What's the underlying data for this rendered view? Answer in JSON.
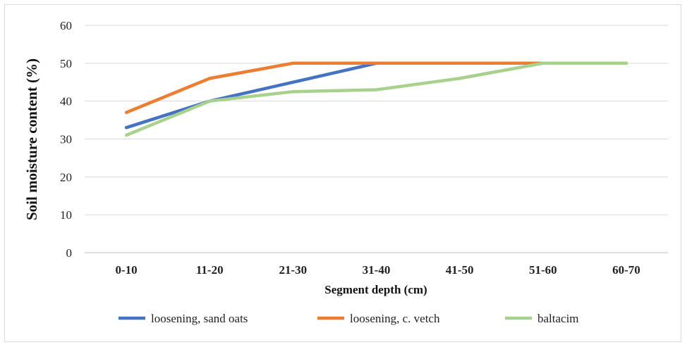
{
  "chart_data": {
    "type": "line",
    "title": "",
    "xlabel": "Segment depth (cm)",
    "ylabel": "Soil moisture content (%)",
    "categories": [
      "0-10",
      "11-20",
      "21-30",
      "31-40",
      "41-50",
      "51-60",
      "60-70"
    ],
    "ylim": [
      0,
      60
    ],
    "yticks": [
      "0",
      "10",
      "20",
      "30",
      "40",
      "50",
      "60"
    ],
    "grid": true,
    "legend_position": "bottom",
    "series": [
      {
        "name": "loosening, sand oats",
        "color": "#4472c4",
        "values": [
          33,
          40,
          45,
          50,
          50,
          50,
          50
        ]
      },
      {
        "name": "loosening, c. vetch",
        "color": "#ed7d31",
        "values": [
          37,
          46,
          50,
          50,
          50,
          50,
          50
        ]
      },
      {
        "name": "baltacim",
        "color": "#a9d18e",
        "values": [
          31,
          40,
          42.5,
          43,
          46,
          50,
          50
        ]
      }
    ]
  }
}
